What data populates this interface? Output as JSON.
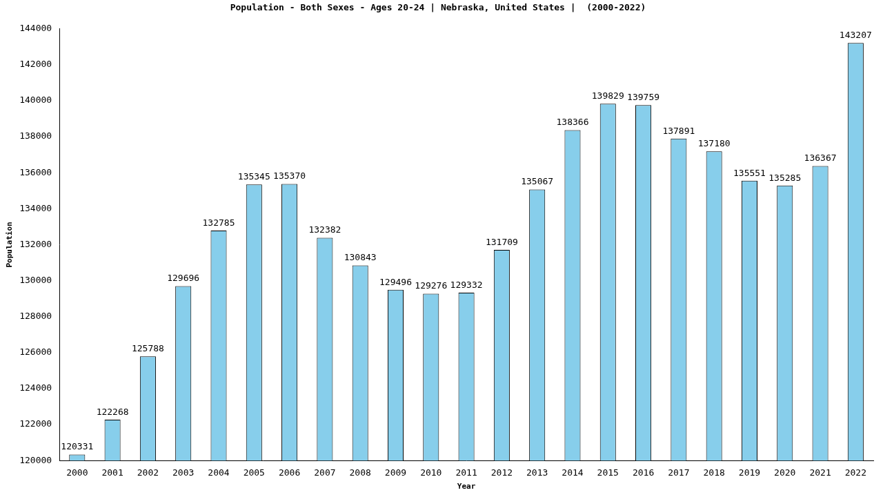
{
  "chart_data": {
    "type": "bar",
    "title": "Population - Both Sexes - Ages 20-24 | Nebraska, United States |  (2000-2022)",
    "x_label": "Year",
    "y_label": "Population",
    "categories": [
      "2000",
      "2001",
      "2002",
      "2003",
      "2004",
      "2005",
      "2006",
      "2007",
      "2008",
      "2009",
      "2010",
      "2011",
      "2012",
      "2013",
      "2014",
      "2015",
      "2016",
      "2017",
      "2018",
      "2019",
      "2020",
      "2021",
      "2022"
    ],
    "values": [
      120331,
      122268,
      125788,
      129696,
      132785,
      135345,
      135370,
      132382,
      130843,
      129496,
      129276,
      129332,
      131709,
      135067,
      138366,
      139829,
      139759,
      137891,
      137180,
      135551,
      135285,
      136367,
      143207
    ],
    "color": "#87ceeb",
    "ylim": [
      120000,
      144000
    ],
    "yticks": [
      120000,
      122000,
      124000,
      126000,
      128000,
      130000,
      132000,
      134000,
      136000,
      138000,
      140000,
      142000,
      144000
    ],
    "grid": false,
    "data_labels": true
  }
}
